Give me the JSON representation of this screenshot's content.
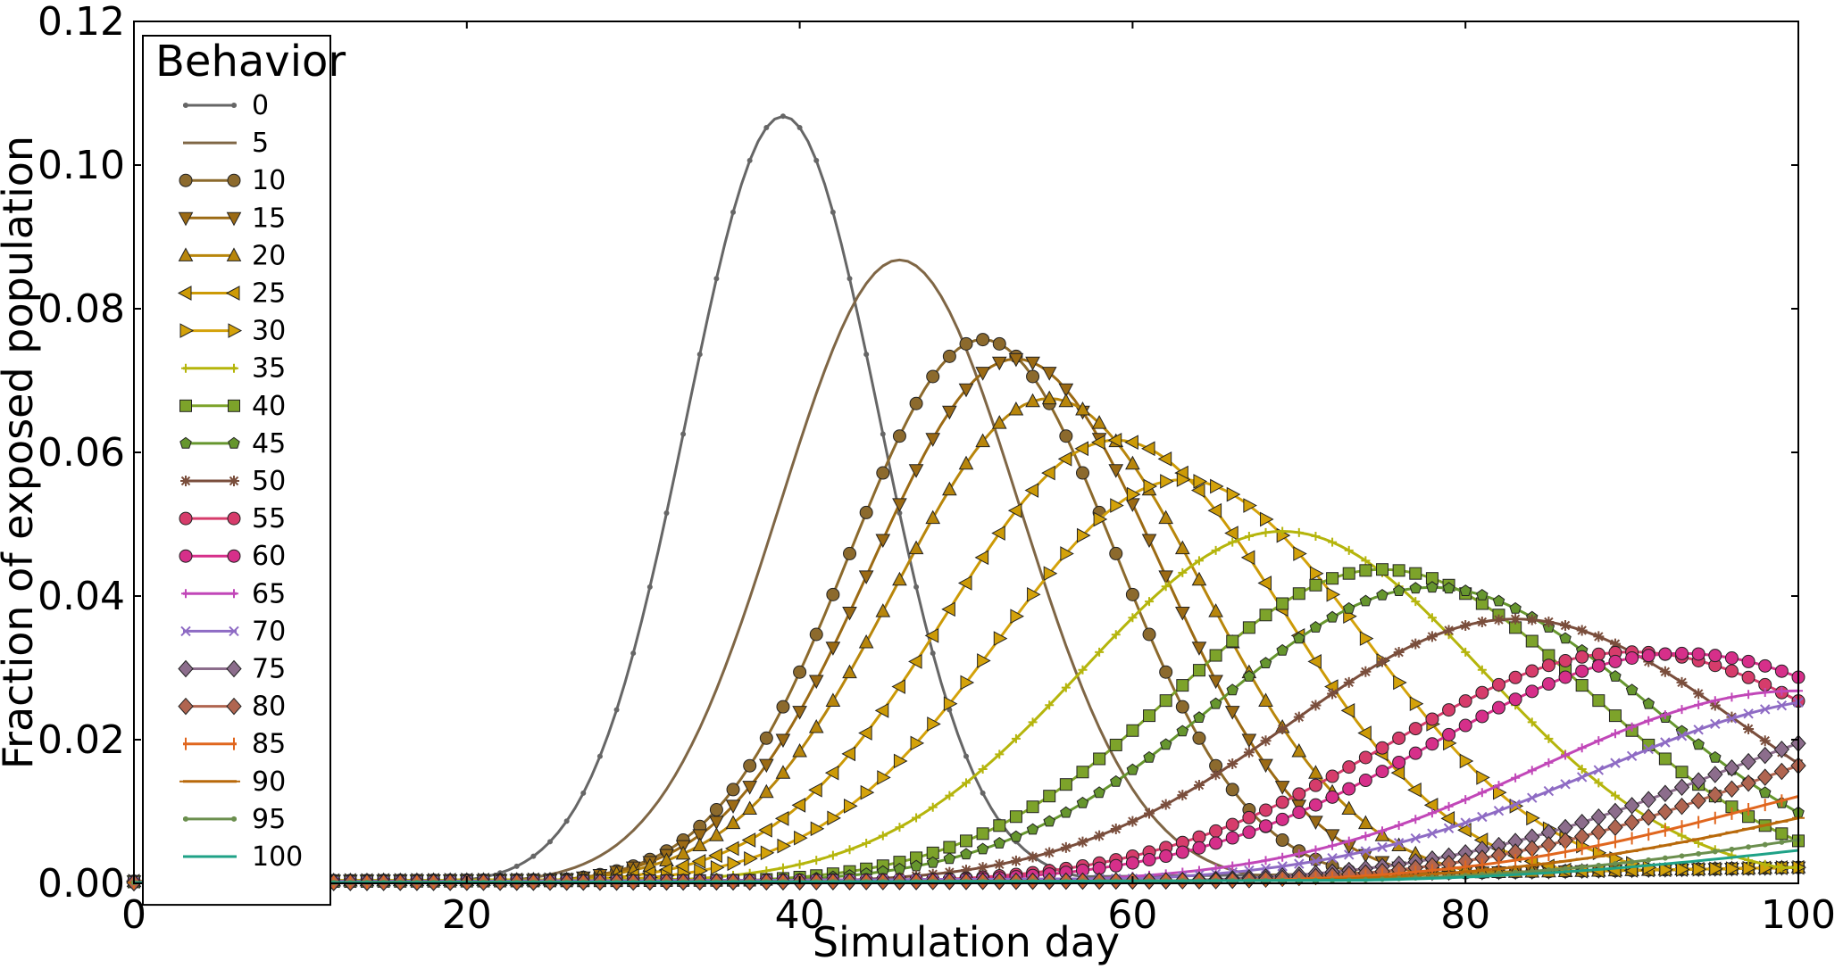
{
  "chart_data": {
    "type": "line",
    "title": "",
    "xlabel": "Simulation day",
    "ylabel": "Fraction of exposed population",
    "xlim": [
      0,
      100
    ],
    "ylim": [
      0,
      0.12
    ],
    "x_ticks": [
      "0",
      "20",
      "40",
      "60",
      "80",
      "100"
    ],
    "y_ticks": [
      "0.00",
      "0.02",
      "0.04",
      "0.06",
      "0.08",
      "0.10",
      "0.12"
    ],
    "grid": false,
    "legend": {
      "title": "Behavior",
      "placement": "top-left"
    },
    "series": [
      {
        "name": "0",
        "color": "#666666",
        "marker": "point",
        "peak_day": 39,
        "peak": 0.1068,
        "width": 5.8,
        "start": 0.0003
      },
      {
        "name": "5",
        "color": "#7F6645",
        "marker": "none",
        "peak_day": 46,
        "peak": 0.0868,
        "width": 7.2,
        "start": 0.0003
      },
      {
        "name": "10",
        "color": "#8C6A2D",
        "marker": "circle",
        "peak_day": 51,
        "peak": 0.0757,
        "width": 8.0,
        "start": 0.0003
      },
      {
        "name": "15",
        "color": "#9B6A14",
        "marker": "tri-down",
        "peak_day": 53,
        "peak": 0.073,
        "width": 8.7,
        "start": 0.0003
      },
      {
        "name": "20",
        "color": "#B8860B",
        "marker": "tri-up",
        "peak_day": 55,
        "peak": 0.0675,
        "width": 9.3,
        "start": 0.0003
      },
      {
        "name": "25",
        "color": "#CC9A06",
        "marker": "tri-left",
        "peak_day": 59,
        "peak": 0.0617,
        "width": 10.2,
        "start": 0.0003
      },
      {
        "name": "30",
        "color": "#D4A20A",
        "marker": "tri-right",
        "peak_day": 63,
        "peak": 0.0562,
        "width": 11.0,
        "start": 0.0003
      },
      {
        "name": "35",
        "color": "#B5B50C",
        "marker": "plus",
        "peak_day": 69,
        "peak": 0.049,
        "width": 12.0,
        "start": 0.0003
      },
      {
        "name": "40",
        "color": "#7DA32A",
        "marker": "square",
        "peak_day": 75,
        "peak": 0.0437,
        "width": 12.5,
        "start": 0.0002
      },
      {
        "name": "45",
        "color": "#66962E",
        "marker": "pentagon",
        "peak_day": 78,
        "peak": 0.0412,
        "width": 13.0,
        "start": 0.0002
      },
      {
        "name": "50",
        "color": "#7A4E3C",
        "marker": "star",
        "peak_day": 83,
        "peak": 0.0368,
        "width": 13.5,
        "start": 0.0002
      },
      {
        "name": "55",
        "color": "#D63C6B",
        "marker": "hexagon",
        "peak_day": 90,
        "peak": 0.0322,
        "width": 14.5,
        "start": 0.0002
      },
      {
        "name": "60",
        "color": "#D62F8A",
        "marker": "octagon",
        "peak_day": 93,
        "peak": 0.032,
        "width": 15.0,
        "start": 0.0002
      },
      {
        "name": "65",
        "color": "#C147B8",
        "marker": "plus",
        "peak_day": 100,
        "peak": 0.0268,
        "width": 15.5,
        "start": 0.0002
      },
      {
        "name": "70",
        "color": "#8E6BC4",
        "marker": "x",
        "peak_day": 104,
        "peak": 0.026,
        "width": 16.0,
        "start": 0.0002
      },
      {
        "name": "75",
        "color": "#8C6D8C",
        "marker": "diamond",
        "peak_day": 112,
        "peak": 0.025,
        "width": 17.0,
        "start": 0.0001
      },
      {
        "name": "80",
        "color": "#B06550",
        "marker": "diamond",
        "peak_day": 114,
        "peak": 0.023,
        "width": 17.0,
        "start": 0.0001
      },
      {
        "name": "85",
        "color": "#E0661E",
        "marker": "vline",
        "peak_day": 114,
        "peak": 0.017,
        "width": 17.0,
        "start": 0.0001
      },
      {
        "name": "90",
        "color": "#B8690B",
        "marker": "hline",
        "peak_day": 118,
        "peak": 0.015,
        "width": 18.0,
        "start": 0.0001
      },
      {
        "name": "95",
        "color": "#6B8F4E",
        "marker": "point",
        "peak_day": 118,
        "peak": 0.01,
        "width": 18.0,
        "start": 0.0001
      },
      {
        "name": "100",
        "color": "#1FA287",
        "marker": "none",
        "peak_day": 120,
        "peak": 0.008,
        "width": 19.0,
        "start": 0.0001
      }
    ]
  }
}
